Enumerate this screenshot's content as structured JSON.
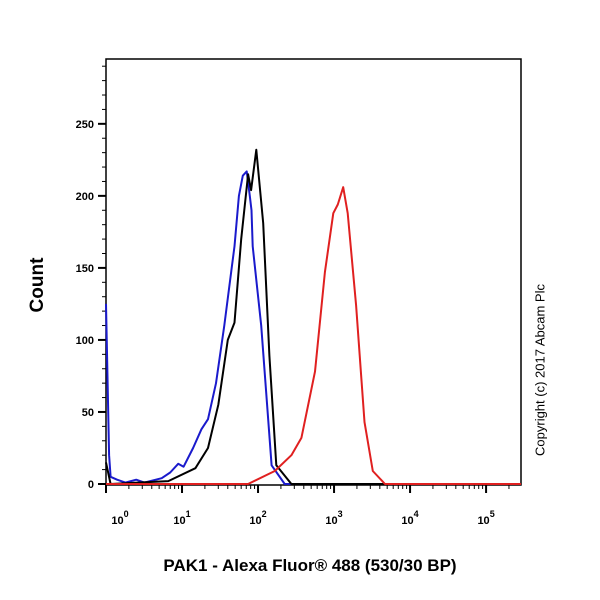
{
  "chart_data": {
    "type": "line",
    "xlabel": "PAK1 - Alexa Fluor® 488 (530/30 BP)",
    "ylabel": "Count",
    "x_scale": "log",
    "xlim": [
      1,
      288000
    ],
    "ylim": [
      0,
      295
    ],
    "grid": false,
    "y_ticks": [
      0,
      50,
      100,
      150,
      200,
      250
    ],
    "y_tick_labels": [
      "0",
      "50",
      "100",
      "150",
      "200",
      "250"
    ],
    "x_ticks": [
      1,
      10,
      100,
      1000,
      10000,
      100000
    ],
    "x_tick_labels": [
      {
        "base": "10",
        "exp": "0"
      },
      {
        "base": "10",
        "exp": "1"
      },
      {
        "base": "10",
        "exp": "2"
      },
      {
        "base": "10",
        "exp": "3"
      },
      {
        "base": "10",
        "exp": "4"
      },
      {
        "base": "10",
        "exp": "5"
      }
    ],
    "series": [
      {
        "color": "#1a1acc",
        "points": [
          [
            1,
            125
          ],
          [
            1.1,
            20
          ],
          [
            1.15,
            5
          ],
          [
            1.4,
            3
          ],
          [
            1.8,
            1
          ],
          [
            2.5,
            3
          ],
          [
            3.2,
            1
          ],
          [
            5.4,
            4
          ],
          [
            7,
            8
          ],
          [
            8.9,
            14
          ],
          [
            10.5,
            12
          ],
          [
            14,
            25
          ],
          [
            18,
            38
          ],
          [
            22,
            45
          ],
          [
            28,
            70
          ],
          [
            36,
            110
          ],
          [
            45,
            150
          ],
          [
            49,
            165
          ],
          [
            56,
            200
          ],
          [
            63,
            214
          ],
          [
            71,
            217
          ],
          [
            78,
            200
          ],
          [
            82,
            190
          ],
          [
            85,
            165
          ],
          [
            110,
            110
          ],
          [
            151,
            13
          ],
          [
            224,
            0
          ],
          [
            288000,
            0
          ]
        ]
      },
      {
        "color": "#000000",
        "points": [
          [
            1,
            15
          ],
          [
            1.15,
            0
          ],
          [
            6.6,
            2
          ],
          [
            15,
            11
          ],
          [
            22,
            25
          ],
          [
            30,
            55
          ],
          [
            40,
            100
          ],
          [
            49,
            112
          ],
          [
            60,
            170
          ],
          [
            74,
            215
          ],
          [
            81,
            204
          ],
          [
            95,
            232
          ],
          [
            117,
            181
          ],
          [
            141,
            89
          ],
          [
            174,
            13
          ],
          [
            275,
            0
          ],
          [
            288000,
            0
          ]
        ]
      },
      {
        "color": "#e02020",
        "points": [
          [
            1,
            0
          ],
          [
            74,
            0
          ],
          [
            166,
            9
          ],
          [
            275,
            20
          ],
          [
            372,
            32
          ],
          [
            562,
            78
          ],
          [
            759,
            147
          ],
          [
            977,
            188
          ],
          [
            1122,
            194
          ],
          [
            1318,
            206
          ],
          [
            1514,
            188
          ],
          [
            1950,
            124
          ],
          [
            2512,
            43
          ],
          [
            3236,
            9
          ],
          [
            4677,
            0
          ],
          [
            288000,
            0
          ]
        ]
      }
    ]
  },
  "copyright": "Copyright (c) 2017 Abcam Plc"
}
